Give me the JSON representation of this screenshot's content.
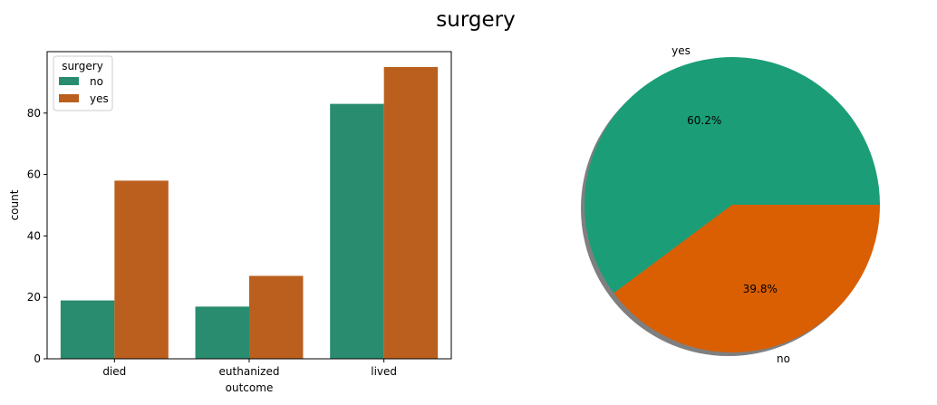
{
  "title": "surgery",
  "chart_data": [
    {
      "type": "bar",
      "categories": [
        "died",
        "euthanized",
        "lived"
      ],
      "series": [
        {
          "name": "no",
          "values": [
            19,
            17,
            83
          ],
          "color": "#2a8c6e"
        },
        {
          "name": "yes",
          "values": [
            58,
            27,
            95
          ],
          "color": "#bb5f1e"
        }
      ],
      "xlabel": "outcome",
      "ylabel": "count",
      "ylim": [
        0,
        100
      ],
      "yticks": [
        0,
        20,
        40,
        60,
        80
      ],
      "legend": {
        "title": "surgery",
        "placement": "upper-left"
      },
      "grid": false
    },
    {
      "type": "pie",
      "slices": [
        {
          "label": "yes",
          "value": 60.2,
          "pct_label": "60.2%",
          "color": "#1b9e77"
        },
        {
          "label": "no",
          "value": 39.8,
          "pct_label": "39.8%",
          "color": "#d95f02"
        }
      ],
      "shadow": true
    }
  ]
}
